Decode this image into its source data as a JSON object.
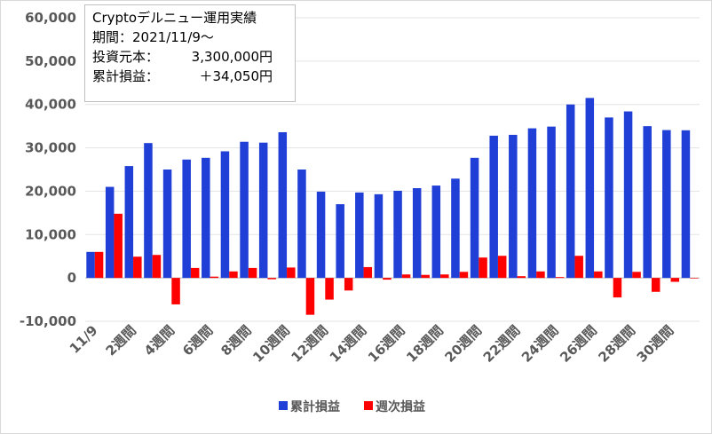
{
  "info": {
    "title": "Cryptoデルニュー運用実績",
    "period_label": "期間：",
    "period_value": "2021/11/9～",
    "capital_label": "投資元本：",
    "capital_value": "3,300,000円",
    "profit_label": "累計損益：",
    "profit_value": "＋34,050円"
  },
  "chart_data": {
    "type": "bar",
    "title": "",
    "xlabel": "",
    "ylabel": "",
    "ylim": [
      -10000,
      60000
    ],
    "yticks": [
      -10000,
      0,
      10000,
      20000,
      30000,
      40000,
      50000,
      60000
    ],
    "ytick_labels": [
      "-10,000",
      "0",
      "10,000",
      "20,000",
      "30,000",
      "40,000",
      "50,000",
      "60,000"
    ],
    "categories": [
      "11/9",
      "",
      "2週間",
      "",
      "4週間",
      "",
      "6週間",
      "",
      "8週間",
      "",
      "10週間",
      "",
      "12週間",
      "",
      "14週間",
      "",
      "16週間",
      "",
      "18週間",
      "",
      "20週間",
      "",
      "22週間",
      "",
      "24週間",
      "",
      "26週間",
      "",
      "28週間",
      "",
      "30週間",
      ""
    ],
    "legend_position": "bottom",
    "series": [
      {
        "name": "累計損益",
        "color": "#1f3fd6",
        "values": [
          6000,
          21000,
          25800,
          31100,
          25000,
          27300,
          27700,
          29200,
          31400,
          31200,
          33600,
          25000,
          19900,
          17000,
          19700,
          19300,
          20100,
          20700,
          21300,
          22900,
          27700,
          32800,
          33000,
          34500,
          34900,
          40000,
          41500,
          37000,
          38400,
          35000,
          34100,
          34050
        ]
      },
      {
        "name": "週次損益",
        "color": "#ff0000",
        "values": [
          6000,
          14800,
          4900,
          5300,
          -6100,
          2300,
          300,
          1500,
          2300,
          -300,
          2400,
          -8500,
          -5000,
          -2900,
          2500,
          -400,
          800,
          700,
          800,
          1400,
          4700,
          5100,
          400,
          1500,
          200,
          5100,
          1500,
          -4500,
          1400,
          -3200,
          -900,
          -50
        ]
      }
    ]
  }
}
